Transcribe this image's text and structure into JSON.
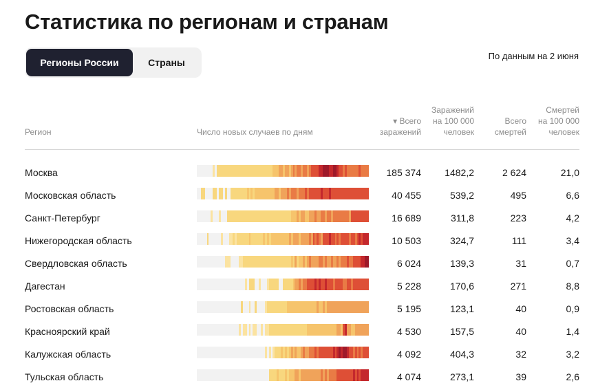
{
  "title": "Статистика по регионам и странам",
  "tabs": [
    {
      "label": "Регионы России",
      "active": true
    },
    {
      "label": "Страны",
      "active": false
    }
  ],
  "date_note": "По данным на 2 июня",
  "headers": {
    "region": "Регион",
    "daily": "Число новых случаев по дням",
    "total_cases_line1": "▾ Всего",
    "total_cases_line2": "заражений",
    "cases_per_100k_line1": "Заражений",
    "cases_per_100k_line2": "на 100 000",
    "cases_per_100k_line3": "человек",
    "deaths_line1": "Всего",
    "deaths_line2": "смертей",
    "deaths_per_100k_line1": "Смертей",
    "deaths_per_100k_line2": "на 100 000",
    "deaths_per_100k_line3": "человек"
  },
  "heat_colors": [
    "#f2f2f2",
    "#fbe3a1",
    "#f8d77e",
    "#f6c46c",
    "#f0a35a",
    "#e97b45",
    "#de4f36",
    "#c4282d",
    "#9e1a2a"
  ],
  "rows": [
    {
      "region": "Москва",
      "total": "185 374",
      "per100k": "1482,2",
      "deaths": "2 624",
      "deaths_per100k": "21,0",
      "heat": [
        0,
        0,
        0,
        0,
        0,
        0,
        0,
        0,
        1,
        0,
        2,
        2,
        2,
        2,
        2,
        2,
        2,
        2,
        2,
        2,
        2,
        2,
        2,
        2,
        2,
        2,
        2,
        2,
        2,
        2,
        2,
        2,
        2,
        2,
        2,
        2,
        2,
        2,
        3,
        3,
        3,
        4,
        4,
        3,
        4,
        4,
        3,
        4,
        5,
        4,
        5,
        5,
        4,
        5,
        5,
        4,
        5,
        6,
        6,
        6,
        6,
        7,
        7,
        8,
        8,
        8,
        7,
        7,
        8,
        8,
        7,
        6,
        6,
        5,
        6,
        5,
        5,
        5,
        5,
        5,
        5,
        6,
        5,
        5,
        5,
        5
      ]
    },
    {
      "region": "Московская область",
      "total": "40 455",
      "per100k": "539,2",
      "deaths": "495",
      "deaths_per100k": "6,6",
      "heat": [
        0,
        0,
        2,
        2,
        0,
        0,
        0,
        0,
        2,
        2,
        0,
        2,
        2,
        0,
        2,
        0,
        0,
        2,
        2,
        2,
        2,
        2,
        2,
        2,
        2,
        3,
        2,
        3,
        2,
        3,
        3,
        3,
        3,
        3,
        3,
        3,
        3,
        3,
        3,
        4,
        4,
        3,
        4,
        4,
        4,
        5,
        4,
        5,
        5,
        5,
        4,
        5,
        5,
        5,
        6,
        5,
        6,
        6,
        6,
        6,
        6,
        6,
        7,
        6,
        6,
        6,
        7,
        6,
        6,
        6,
        6,
        6,
        6,
        6,
        6,
        6,
        6,
        6,
        6,
        6,
        6,
        6,
        6,
        6,
        6,
        6
      ]
    },
    {
      "region": "Санкт-Петербург",
      "total": "16 689",
      "per100k": "311,8",
      "deaths": "223",
      "deaths_per100k": "4,2",
      "heat": [
        0,
        0,
        0,
        0,
        0,
        0,
        0,
        1,
        0,
        0,
        0,
        1,
        0,
        0,
        0,
        2,
        2,
        2,
        2,
        2,
        2,
        2,
        2,
        2,
        2,
        2,
        2,
        2,
        2,
        2,
        2,
        2,
        2,
        2,
        2,
        2,
        2,
        2,
        2,
        2,
        2,
        2,
        2,
        2,
        2,
        2,
        2,
        3,
        3,
        3,
        4,
        3,
        4,
        4,
        3,
        3,
        4,
        4,
        4,
        5,
        4,
        4,
        5,
        5,
        4,
        5,
        5,
        4,
        5,
        5,
        5,
        5,
        5,
        5,
        5,
        5,
        4,
        6,
        6,
        6,
        6,
        6,
        6,
        6,
        6,
        6
      ]
    },
    {
      "region": "Нижегородская область",
      "total": "10 503",
      "per100k": "324,7",
      "deaths": "111",
      "deaths_per100k": "3,4",
      "heat": [
        0,
        0,
        0,
        0,
        0,
        2,
        0,
        0,
        0,
        0,
        0,
        0,
        1,
        0,
        0,
        0,
        1,
        1,
        2,
        1,
        2,
        2,
        2,
        2,
        2,
        2,
        3,
        2,
        2,
        2,
        2,
        2,
        2,
        3,
        2,
        3,
        2,
        3,
        3,
        3,
        3,
        3,
        3,
        3,
        3,
        3,
        4,
        3,
        4,
        4,
        4,
        3,
        4,
        4,
        4,
        4,
        5,
        4,
        6,
        5,
        6,
        5,
        4,
        6,
        6,
        6,
        7,
        6,
        6,
        5,
        6,
        5,
        6,
        6,
        6,
        6,
        5,
        6,
        6,
        5,
        6,
        7,
        6,
        7,
        7,
        7
      ]
    },
    {
      "region": "Свердловская область",
      "total": "6 024",
      "per100k": "139,3",
      "deaths": "31",
      "deaths_per100k": "0,7",
      "heat": [
        0,
        0,
        0,
        0,
        0,
        0,
        0,
        0,
        0,
        0,
        0,
        0,
        0,
        0,
        1,
        1,
        1,
        0,
        0,
        0,
        0,
        1,
        1,
        2,
        2,
        2,
        2,
        2,
        2,
        2,
        2,
        2,
        2,
        2,
        2,
        2,
        2,
        2,
        2,
        2,
        2,
        2,
        2,
        2,
        2,
        2,
        2,
        3,
        2,
        4,
        2,
        3,
        3,
        4,
        3,
        4,
        5,
        4,
        4,
        4,
        4,
        5,
        5,
        4,
        5,
        4,
        4,
        5,
        4,
        4,
        5,
        4,
        5,
        5,
        5,
        6,
        5,
        5,
        6,
        6,
        6,
        6,
        7,
        7,
        8,
        8
      ]
    },
    {
      "region": "Дагестан",
      "total": "5 228",
      "per100k": "170,6",
      "deaths": "271",
      "deaths_per100k": "8,8",
      "heat": [
        0,
        0,
        0,
        0,
        0,
        0,
        0,
        0,
        0,
        0,
        0,
        0,
        0,
        0,
        0,
        0,
        0,
        0,
        0,
        0,
        0,
        0,
        0,
        0,
        1,
        0,
        2,
        2,
        2,
        0,
        0,
        1,
        0,
        0,
        0,
        1,
        2,
        2,
        2,
        2,
        2,
        0,
        0,
        2,
        2,
        2,
        2,
        2,
        3,
        4,
        4,
        5,
        4,
        5,
        5,
        6,
        6,
        6,
        6,
        7,
        6,
        7,
        6,
        6,
        7,
        6,
        6,
        6,
        5,
        6,
        6,
        6,
        6,
        5,
        5,
        6,
        6,
        5,
        6,
        6,
        6,
        6,
        6,
        6,
        6,
        6
      ]
    },
    {
      "region": "Ростовская область",
      "total": "5 195",
      "per100k": "123,1",
      "deaths": "40",
      "deaths_per100k": "0,9",
      "heat": [
        0,
        0,
        0,
        0,
        0,
        0,
        0,
        0,
        0,
        0,
        0,
        0,
        0,
        0,
        0,
        0,
        0,
        0,
        0,
        0,
        0,
        0,
        2,
        0,
        0,
        0,
        1,
        0,
        0,
        2,
        0,
        0,
        0,
        0,
        1,
        2,
        2,
        2,
        2,
        2,
        2,
        2,
        2,
        2,
        2,
        3,
        3,
        3,
        3,
        3,
        3,
        3,
        3,
        3,
        3,
        3,
        3,
        3,
        3,
        3,
        4,
        3,
        3,
        4,
        3,
        4,
        4,
        4,
        4,
        4,
        4,
        4,
        4,
        4,
        4,
        4,
        4,
        4,
        4,
        4,
        4,
        4,
        4,
        4,
        4,
        4
      ]
    },
    {
      "region": "Красноярский край",
      "total": "4 530",
      "per100k": "157,5",
      "deaths": "40",
      "deaths_per100k": "1,4",
      "heat": [
        0,
        0,
        0,
        0,
        0,
        0,
        0,
        0,
        0,
        0,
        0,
        0,
        0,
        0,
        0,
        0,
        0,
        0,
        0,
        0,
        0,
        1,
        0,
        1,
        1,
        0,
        1,
        0,
        1,
        1,
        0,
        0,
        1,
        0,
        1,
        1,
        2,
        2,
        2,
        2,
        2,
        2,
        2,
        2,
        2,
        2,
        2,
        2,
        2,
        2,
        2,
        2,
        2,
        2,
        2,
        3,
        3,
        3,
        3,
        3,
        3,
        3,
        3,
        3,
        3,
        3,
        3,
        3,
        3,
        3,
        4,
        4,
        3,
        6,
        7,
        4,
        4,
        3,
        3,
        4,
        4,
        4,
        4,
        4,
        4,
        4
      ]
    },
    {
      "region": "Калужская область",
      "total": "4 092",
      "per100k": "404,3",
      "deaths": "32",
      "deaths_per100k": "3,2",
      "heat": [
        0,
        0,
        0,
        0,
        0,
        0,
        0,
        0,
        0,
        0,
        0,
        0,
        0,
        0,
        0,
        0,
        0,
        0,
        0,
        0,
        0,
        0,
        0,
        0,
        0,
        0,
        0,
        0,
        0,
        0,
        0,
        0,
        0,
        0,
        1,
        0,
        1,
        0,
        1,
        2,
        2,
        2,
        3,
        2,
        3,
        2,
        3,
        4,
        3,
        4,
        3,
        3,
        4,
        5,
        4,
        4,
        5,
        5,
        5,
        6,
        5,
        6,
        6,
        6,
        6,
        6,
        6,
        6,
        7,
        6,
        7,
        8,
        7,
        8,
        8,
        7,
        6,
        6,
        5,
        6,
        5,
        6,
        5,
        6,
        6,
        6
      ]
    },
    {
      "region": "Тульская область",
      "total": "4 074",
      "per100k": "273,1",
      "deaths": "39",
      "deaths_per100k": "2,6",
      "heat": [
        0,
        0,
        0,
        0,
        0,
        0,
        0,
        0,
        0,
        0,
        0,
        0,
        0,
        0,
        0,
        0,
        0,
        0,
        0,
        0,
        0,
        0,
        0,
        0,
        0,
        0,
        0,
        0,
        0,
        0,
        0,
        0,
        0,
        0,
        0,
        0,
        2,
        2,
        2,
        2,
        3,
        2,
        2,
        2,
        3,
        2,
        3,
        3,
        3,
        4,
        4,
        3,
        4,
        4,
        4,
        4,
        4,
        4,
        4,
        4,
        4,
        4,
        5,
        4,
        5,
        4,
        5,
        5,
        5,
        5,
        6,
        6,
        6,
        6,
        6,
        6,
        6,
        6,
        7,
        6,
        7,
        6,
        7,
        7,
        7,
        7
      ]
    }
  ]
}
